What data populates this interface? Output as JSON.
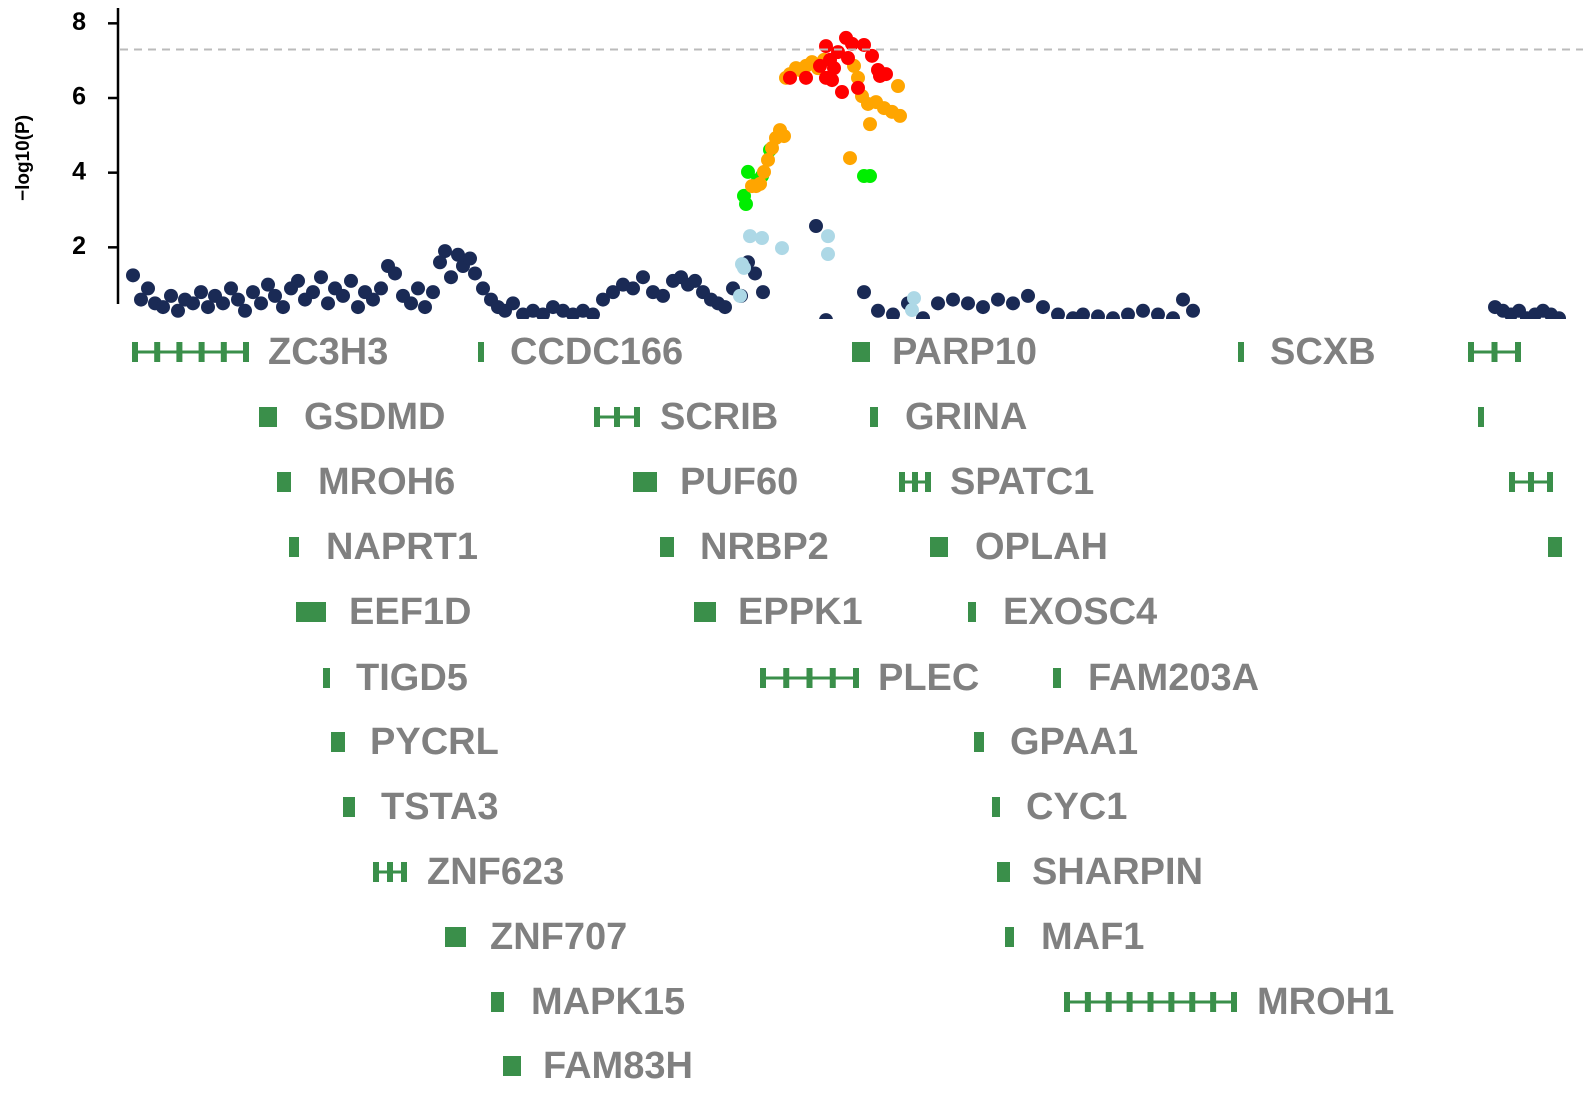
{
  "chart_data": {
    "type": "scatter",
    "ylabel": "−log10(P)",
    "xlim": [
      0,
      1430
    ],
    "ylim": [
      0,
      8.4
    ],
    "yticks": [
      2,
      4,
      6,
      8
    ],
    "hline": 7.3,
    "series": [
      {
        "color": "#1a2a55",
        "x": [
          0,
          8,
          15,
          22,
          30,
          38,
          45,
          52,
          60,
          68,
          75,
          82,
          90,
          98,
          105,
          112,
          120,
          128,
          135,
          142,
          150,
          158,
          165,
          172,
          180,
          188,
          195,
          202,
          210,
          218,
          225,
          232,
          240,
          248,
          255,
          262,
          270,
          278,
          285,
          292,
          300,
          307,
          312,
          318,
          325,
          330,
          337,
          342,
          350,
          358,
          365,
          372,
          380,
          390,
          400,
          410,
          420,
          430,
          440,
          450,
          460,
          470,
          480,
          490,
          500,
          510,
          520,
          530,
          540,
          548,
          555,
          562,
          570,
          578,
          585,
          592,
          600,
          608,
          615,
          622,
          630,
          683,
          731,
          693,
          745,
          760,
          775,
          790,
          805,
          820,
          835,
          850,
          865,
          880,
          895,
          910,
          925,
          940,
          950,
          965,
          980,
          995,
          1010,
          1025,
          1040,
          1050,
          1060,
          1362,
          1370,
          1378,
          1386,
          1394,
          1402,
          1410,
          1418,
          1426
        ],
        "values": [
          1.25,
          0.6,
          0.9,
          0.5,
          0.4,
          0.7,
          0.3,
          0.6,
          0.5,
          0.8,
          0.4,
          0.7,
          0.5,
          0.9,
          0.6,
          0.3,
          0.8,
          0.5,
          1.0,
          0.7,
          0.4,
          0.9,
          1.1,
          0.6,
          0.8,
          1.2,
          0.5,
          0.9,
          0.7,
          1.1,
          0.4,
          0.8,
          0.6,
          0.9,
          1.5,
          1.3,
          0.7,
          0.5,
          0.9,
          0.4,
          0.8,
          1.6,
          1.9,
          1.2,
          1.8,
          1.5,
          1.7,
          1.3,
          0.9,
          0.6,
          0.4,
          0.3,
          0.5,
          0.2,
          0.3,
          0.2,
          0.4,
          0.3,
          0.2,
          0.3,
          0.2,
          0.6,
          0.8,
          1.0,
          0.9,
          1.2,
          0.8,
          0.7,
          1.1,
          1.2,
          1.0,
          1.1,
          0.8,
          0.6,
          0.5,
          0.4,
          0.9,
          0.7,
          1.6,
          1.3,
          0.8,
          2.57,
          0.8,
          0.05,
          0.3,
          0.2,
          0.5,
          0.1,
          0.5,
          0.6,
          0.5,
          0.4,
          0.6,
          0.5,
          0.7,
          0.4,
          0.2,
          0.1,
          0.2,
          0.15,
          0.1,
          0.2,
          0.3,
          0.2,
          0.1,
          0.6,
          0.3,
          0.4,
          0.3,
          0.2,
          0.3,
          0.1,
          0.2,
          0.3,
          0.2,
          0.1
        ]
      },
      {
        "color": "#add8e6",
        "x": [
          617,
          629,
          649,
          695,
          695,
          609,
          611,
          607,
          781,
          779
        ],
        "values": [
          2.3,
          2.25,
          1.98,
          2.3,
          1.82,
          1.55,
          1.45,
          0.7,
          0.64,
          0.32
        ]
      },
      {
        "color": "#00ee00",
        "x": [
          615,
          611,
          613,
          629,
          625,
          637,
          731,
          737
        ],
        "values": [
          4.02,
          3.38,
          3.16,
          3.91,
          3.8,
          4.61,
          3.91,
          3.91
        ]
      },
      {
        "color": "#ffa500",
        "x": [
          657,
          667,
          673,
          679,
          685,
          691,
          663,
          653,
          721,
          725,
          729,
          735,
          743,
          751,
          759,
          767,
          765,
          737,
          717,
          647,
          643,
          639,
          635,
          631,
          627,
          623,
          651,
          619
        ],
        "values": [
          6.64,
          6.75,
          6.86,
          6.96,
          6.8,
          7.02,
          6.8,
          6.54,
          6.86,
          6.54,
          6.05,
          5.84,
          5.89,
          5.73,
          5.63,
          5.52,
          6.32,
          5.3,
          4.39,
          5.14,
          4.93,
          4.66,
          4.34,
          4.02,
          3.7,
          3.64,
          4.98,
          3.64
        ]
      },
      {
        "color": "#ff0000",
        "x": [
          693,
          713,
          719,
          731,
          705,
          697,
          687,
          715,
          739,
          745,
          753,
          747,
          699,
          709,
          725,
          693,
          673,
          657,
          701
        ],
        "values": [
          7.39,
          7.61,
          7.45,
          7.42,
          7.23,
          7.02,
          6.86,
          7.07,
          7.13,
          6.75,
          6.64,
          6.59,
          6.48,
          6.16,
          6.27,
          6.54,
          6.54,
          6.54,
          6.8
        ]
      }
    ],
    "genes": [
      "ZC3H3",
      "CCDC166",
      "PARP10",
      "SCXB",
      "GSDMD",
      "SCRIB",
      "GRINA",
      "MROH6",
      "PUF60",
      "SPATC1",
      "NAPRT1",
      "NRBP2",
      "OPLAH",
      "EEF1D",
      "EPPK1",
      "EXOSC4",
      "TIGD5",
      "PLEC",
      "FAM203A",
      "PYCRL",
      "GPAA1",
      "TSTA3",
      "CYC1",
      "ZNF623",
      "SHARPIN",
      "ZNF707",
      "MAF1",
      "MAPK15",
      "MROH1",
      "FAM83H"
    ]
  }
}
